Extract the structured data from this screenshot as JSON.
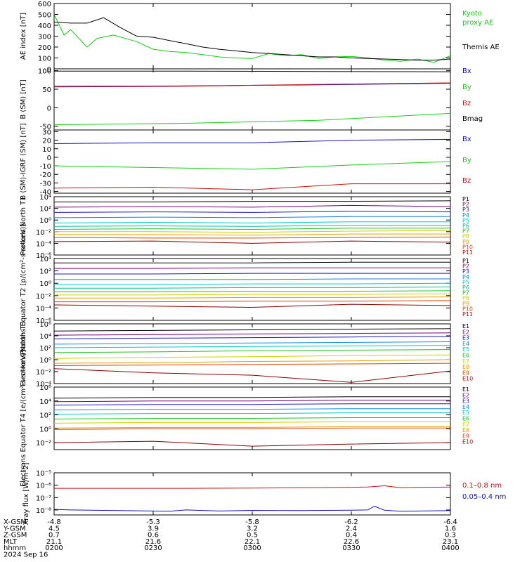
{
  "colors": {
    "black": "#000000",
    "blue": "#1010c0",
    "green": "#10d010",
    "red": "#c81010",
    "p_ladder": [
      "#000000",
      "#7a007a",
      "#1a1ac8",
      "#1a7ae8",
      "#00c8c8",
      "#00c090",
      "#20c020",
      "#d0d000",
      "#e8a000",
      "#e04000",
      "#c00000",
      "#8c0000"
    ],
    "e_ladder": [
      "#000000",
      "#7a007a",
      "#1a1ac8",
      "#1a8ae8",
      "#00c8c8",
      "#20c020",
      "#d0d000",
      "#e8a000",
      "#e04000",
      "#c00000",
      "#8c0000"
    ]
  },
  "chart_data": [
    {
      "id": "ae",
      "type": "line",
      "ylabel": "AE index [nT]",
      "yticks": [
        "600",
        "500",
        "400",
        "300",
        "200",
        "100",
        "0"
      ],
      "ylim": [
        0,
        600
      ],
      "legend_placement": "right",
      "series": [
        {
          "name": "Kyoto proxy AE",
          "color": "#10d010",
          "x": [
            0,
            3,
            5,
            10,
            13,
            18,
            25,
            30,
            35,
            40,
            45,
            50,
            55,
            60,
            65,
            70,
            75,
            80,
            85,
            90,
            95,
            100,
            105,
            110,
            115,
            120
          ],
          "values": [
            500,
            310,
            360,
            200,
            280,
            310,
            250,
            180,
            160,
            150,
            130,
            110,
            100,
            95,
            140,
            120,
            130,
            95,
            110,
            115,
            100,
            80,
            70,
            90,
            60,
            120
          ]
        },
        {
          "name": "Themis AE",
          "color": "#000000",
          "x": [
            0,
            5,
            10,
            15,
            20,
            25,
            30,
            35,
            40,
            45,
            50,
            55,
            60,
            65,
            70,
            75,
            80,
            85,
            90,
            95,
            100,
            105,
            110,
            115,
            120
          ],
          "values": [
            430,
            420,
            420,
            470,
            380,
            300,
            290,
            260,
            230,
            200,
            180,
            165,
            150,
            140,
            130,
            120,
            110,
            110,
            100,
            95,
            90,
            85,
            80,
            80,
            90
          ]
        }
      ]
    },
    {
      "id": "b",
      "type": "line",
      "ylabel": "B (SM) [nT]",
      "yticks": [
        "100",
        "50",
        "0",
        "-50"
      ],
      "ylim": [
        -60,
        105
      ],
      "legend_placement": "right",
      "series": [
        {
          "name": "Bx",
          "color": "#1010c0",
          "x": [
            0,
            40,
            80,
            120
          ],
          "values": [
            58,
            59,
            62,
            66
          ]
        },
        {
          "name": "By",
          "color": "#10d010",
          "x": [
            0,
            40,
            80,
            120
          ],
          "values": [
            -46,
            -42,
            -34,
            -15
          ]
        },
        {
          "name": "Bz",
          "color": "#c81010",
          "x": [
            0,
            40,
            80,
            120
          ],
          "values": [
            56,
            58,
            63,
            67
          ]
        },
        {
          "name": "Bmag",
          "color": "#000000",
          "x": [
            0,
            40,
            80,
            120
          ],
          "values": [
            99,
            99,
            98,
            97
          ]
        }
      ]
    },
    {
      "id": "db",
      "type": "line",
      "ylabel": "B (SM)-IGRF (SM) [nT]",
      "yticks": [
        "30",
        "20",
        "10",
        "0",
        "-10",
        "-20",
        "-30",
        "-40"
      ],
      "ylim": [
        -42,
        32
      ],
      "legend_placement": "right",
      "series": [
        {
          "name": "Bx",
          "color": "#1010c0",
          "x": [
            0,
            30,
            60,
            90,
            120
          ],
          "values": [
            16,
            17,
            17,
            20,
            21
          ]
        },
        {
          "name": "By",
          "color": "#10d010",
          "x": [
            0,
            30,
            60,
            90,
            120
          ],
          "values": [
            -10,
            -12,
            -14,
            -9,
            -5
          ]
        },
        {
          "name": "Bz",
          "color": "#c81010",
          "x": [
            0,
            30,
            60,
            90,
            120
          ],
          "values": [
            -36,
            -35,
            -38,
            -31,
            -31
          ]
        }
      ]
    },
    {
      "id": "pn",
      "type": "line",
      "yscale": "log",
      "ylabel": "Protons North T1",
      "yticks": [
        "10⁴",
        "10²",
        "10⁰",
        "10⁻²",
        "10⁻⁴",
        "10⁻⁶"
      ],
      "ylim": [
        -6,
        4
      ],
      "legend_placement": "right",
      "series": [
        {
          "name": "P1",
          "color": "#000000",
          "log_values": [
            3.1,
            3.1,
            3.2,
            3.2,
            3.3
          ]
        },
        {
          "name": "P2",
          "color": "#7a007a",
          "log_values": [
            2.2,
            2.3,
            2.2,
            2.5,
            2.3
          ]
        },
        {
          "name": "P3",
          "color": "#1a1ac8",
          "log_values": [
            1.3,
            1.4,
            1.3,
            1.5,
            1.4
          ]
        },
        {
          "name": "P4",
          "color": "#1a7ae8",
          "log_values": [
            0.4,
            0.5,
            0.4,
            0.6,
            0.6
          ]
        },
        {
          "name": "P5",
          "color": "#00c8c8",
          "log_values": [
            -0.5,
            -0.4,
            -0.5,
            -0.3,
            -0.3
          ]
        },
        {
          "name": "P6",
          "color": "#00c090",
          "log_values": [
            -1.1,
            -1.0,
            -1.1,
            -0.9,
            -0.9
          ]
        },
        {
          "name": "P7",
          "color": "#20c020",
          "log_values": [
            -1.6,
            -1.5,
            -1.6,
            -1.4,
            -1.4
          ]
        },
        {
          "name": "P8",
          "color": "#d0d000",
          "log_values": [
            -2.0,
            -2.0,
            -2.1,
            -1.9,
            -1.8
          ]
        },
        {
          "name": "P9",
          "color": "#e8a000",
          "log_values": [
            -2.5,
            -2.5,
            -2.6,
            -2.4,
            -2.4
          ]
        },
        {
          "name": "P10",
          "color": "#e04000",
          "log_values": [
            -3.0,
            -3.1,
            -3.1,
            -3.0,
            -2.9
          ]
        },
        {
          "name": "P11",
          "color": "#8c0000",
          "log_values": [
            -3.7,
            -3.6,
            -4.0,
            -3.6,
            -3.8
          ]
        }
      ]
    },
    {
      "id": "pe",
      "type": "line",
      "yscale": "log",
      "ylabel": "Protons Equator T2 [p/(cm²-s-sr-keV)]",
      "yticks": [
        "10⁴",
        "10²",
        "10⁰",
        "10⁻²",
        "10⁻⁴",
        "10⁻⁶"
      ],
      "ylim": [
        -6,
        4
      ],
      "legend_placement": "right",
      "series": [
        {
          "name": "P1",
          "color": "#000000",
          "log_values": [
            3.3,
            3.3,
            3.3,
            3.4,
            3.4
          ]
        },
        {
          "name": "P2",
          "color": "#7a007a",
          "log_values": [
            2.4,
            2.4,
            2.5,
            2.5,
            2.5
          ]
        },
        {
          "name": "P3",
          "color": "#1a1ac8",
          "log_values": [
            1.5,
            1.5,
            1.6,
            1.6,
            1.6
          ]
        },
        {
          "name": "P4",
          "color": "#1a7ae8",
          "log_values": [
            0.6,
            0.6,
            0.6,
            0.7,
            0.7
          ]
        },
        {
          "name": "P5",
          "color": "#00c8c8",
          "log_values": [
            -0.2,
            -0.2,
            -0.1,
            -0.1,
            0.0
          ]
        },
        {
          "name": "P6",
          "color": "#00c090",
          "log_values": [
            -0.8,
            -0.8,
            -0.7,
            -0.7,
            -0.6
          ]
        },
        {
          "name": "P7",
          "color": "#20c020",
          "log_values": [
            -1.4,
            -1.4,
            -1.3,
            -1.3,
            -1.2
          ]
        },
        {
          "name": "P8",
          "color": "#d0d000",
          "log_values": [
            -1.9,
            -1.9,
            -1.8,
            -1.8,
            -1.7
          ]
        },
        {
          "name": "P9",
          "color": "#e8a000",
          "log_values": [
            -2.4,
            -2.4,
            -2.3,
            -2.3,
            -2.2
          ]
        },
        {
          "name": "P10",
          "color": "#e04000",
          "log_values": [
            -3.0,
            -3.0,
            -2.9,
            -2.9,
            -2.8
          ]
        },
        {
          "name": "P11",
          "color": "#8c0000",
          "log_values": [
            -3.5,
            -3.7,
            -3.9,
            -3.4,
            -3.6
          ]
        }
      ]
    },
    {
      "id": "en",
      "type": "line",
      "yscale": "log",
      "ylabel": "Electrons North T3",
      "yticks": [
        "10⁶",
        "10⁴",
        "10²",
        "10⁰",
        "10⁻²",
        "10⁻⁴"
      ],
      "ylim": [
        -4,
        6
      ],
      "legend_placement": "right",
      "series": [
        {
          "name": "E1",
          "color": "#000000",
          "log_values": [
            4.8,
            4.9,
            5.0,
            5.1,
            5.2
          ]
        },
        {
          "name": "E2",
          "color": "#7a007a",
          "log_values": [
            4.1,
            4.2,
            4.3,
            4.4,
            4.5
          ]
        },
        {
          "name": "E3",
          "color": "#1a1ac8",
          "log_values": [
            3.5,
            3.6,
            3.7,
            3.8,
            3.9
          ]
        },
        {
          "name": "E4",
          "color": "#1a8ae8",
          "log_values": [
            2.6,
            2.7,
            2.8,
            2.9,
            3.0
          ]
        },
        {
          "name": "E5",
          "color": "#00c8c8",
          "log_values": [
            2.0,
            2.1,
            2.2,
            2.3,
            2.4
          ]
        },
        {
          "name": "E6",
          "color": "#20c020",
          "log_values": [
            1.2,
            1.3,
            1.5,
            1.6,
            1.7
          ]
        },
        {
          "name": "E7",
          "color": "#d0d000",
          "log_values": [
            0.2,
            0.4,
            0.5,
            0.7,
            0.8
          ]
        },
        {
          "name": "E8",
          "color": "#e8a000",
          "log_values": [
            -0.6,
            -0.5,
            -0.3,
            -0.2,
            0.0
          ]
        },
        {
          "name": "E9",
          "color": "#e04000",
          "log_values": [
            -1.0,
            -0.9,
            -0.8,
            -0.7,
            -0.6
          ]
        },
        {
          "name": "E10",
          "color": "#8c0000",
          "log_values": [
            -1.5,
            -2.2,
            -2.6,
            -3.8,
            -1.9
          ]
        }
      ]
    },
    {
      "id": "ee",
      "type": "line",
      "yscale": "log",
      "ylabel": "Electrons Equator T4 [e/(cm²-s-sr-keV)]",
      "yticks": [
        "10⁶",
        "10⁴",
        "10²",
        "10⁰",
        "10⁻²"
      ],
      "ylim": [
        -3,
        6
      ],
      "legend_placement": "right",
      "series": [
        {
          "name": "E1",
          "color": "#000000",
          "log_values": [
            4.4,
            4.5,
            4.5,
            4.6,
            4.6
          ]
        },
        {
          "name": "E2",
          "color": "#7a007a",
          "log_values": [
            3.9,
            4.0,
            4.0,
            4.1,
            4.1
          ]
        },
        {
          "name": "E3",
          "color": "#1a1ac8",
          "log_values": [
            3.4,
            3.5,
            3.5,
            3.6,
            3.6
          ]
        },
        {
          "name": "E4",
          "color": "#1a8ae8",
          "log_values": [
            2.7,
            2.8,
            2.8,
            2.9,
            2.9
          ]
        },
        {
          "name": "E5",
          "color": "#00c8c8",
          "log_values": [
            2.1,
            2.2,
            2.2,
            2.3,
            2.3
          ]
        },
        {
          "name": "E6",
          "color": "#20c020",
          "log_values": [
            1.4,
            1.5,
            1.5,
            1.6,
            1.6
          ]
        },
        {
          "name": "E7",
          "color": "#d0d000",
          "log_values": [
            0.8,
            0.9,
            0.9,
            1.0,
            1.0
          ]
        },
        {
          "name": "E8",
          "color": "#e8a000",
          "log_values": [
            0.1,
            0.2,
            0.2,
            0.3,
            0.3
          ]
        },
        {
          "name": "E9",
          "color": "#e04000",
          "log_values": [
            -0.1,
            0.0,
            0.0,
            0.1,
            0.1
          ]
        },
        {
          "name": "E10",
          "color": "#8c0000",
          "log_values": [
            -2.0,
            -1.8,
            -2.5,
            -2.2,
            -2.0
          ]
        }
      ]
    },
    {
      "id": "xr",
      "type": "line",
      "yscale": "log",
      "ylabel": "Xray flux [W/m²2]",
      "yticks": [
        "10⁻⁵",
        "10⁻⁶",
        "10⁻⁷",
        "10⁻⁸"
      ],
      "ylim": [
        -8.4,
        -5
      ],
      "legend_placement": "right",
      "series": [
        {
          "name": "0.1–0.8 nm",
          "color": "#c81010",
          "x": [
            0,
            20,
            40,
            60,
            80,
            95,
            100,
            105,
            110,
            120
          ],
          "log_values": [
            -6.25,
            -6.25,
            -6.25,
            -6.23,
            -6.2,
            -6.15,
            -6.05,
            -6.2,
            -6.18,
            -6.15
          ]
        },
        {
          "name": "0.05–0.4 nm",
          "color": "#1010c0",
          "x": [
            0,
            5,
            20,
            35,
            40,
            50,
            60,
            75,
            90,
            95,
            97,
            100,
            105,
            120
          ],
          "log_values": [
            -7.95,
            -8.0,
            -8.05,
            -8.1,
            -8.0,
            -8.08,
            -8.03,
            -8.05,
            -8.02,
            -8.0,
            -7.7,
            -8.02,
            -8.1,
            -8.05
          ]
        }
      ]
    }
  ],
  "time_axis": {
    "ticks": [
      {
        "hhmm": "0200",
        "xgsm": "-4.8",
        "ygsm": "4.5",
        "zgsm": "0.7",
        "mlt": "21.1"
      },
      {
        "hhmm": "0230",
        "xgsm": "-5.3",
        "ygsm": "3.9",
        "zgsm": "0.6",
        "mlt": "21.6"
      },
      {
        "hhmm": "0300",
        "xgsm": "-5.8",
        "ygsm": "3.2",
        "zgsm": "0.5",
        "mlt": "22.1"
      },
      {
        "hhmm": "0330",
        "xgsm": "-6.2",
        "ygsm": "2.4",
        "zgsm": "0.4",
        "mlt": "22.6"
      },
      {
        "hhmm": "0400",
        "xgsm": "-6.4",
        "ygsm": "1.6",
        "zgsm": "0.3",
        "mlt": "23.1"
      }
    ],
    "row_labels": {
      "xgsm": "X-GSM",
      "ygsm": "Y-GSM",
      "zgsm": "Z-GSM",
      "mlt": "MLT",
      "hhmm": "hhmm"
    },
    "date": "2024 Sep 16"
  },
  "legends": {
    "ae": [
      "Kyoto",
      "proxy AE",
      "Themis AE"
    ],
    "b": [
      "Bx",
      "By",
      "Bz",
      "Bmag"
    ],
    "db": [
      "Bx",
      "By",
      "Bz"
    ],
    "pn": [
      "P1",
      "P2",
      "P3",
      "P4",
      "P5",
      "P6",
      "P7",
      "P8",
      "P9",
      "P10",
      "P11"
    ],
    "pe": [
      "P1",
      "P2",
      "P3",
      "P4",
      "P5",
      "P6",
      "P7",
      "P8",
      "P9",
      "P10",
      "P11"
    ],
    "en": [
      "E1",
      "E2",
      "E3",
      "E4",
      "E5",
      "E6",
      "E7",
      "E8",
      "E9",
      "E10"
    ],
    "ee": [
      "E1",
      "E2",
      "E3",
      "E4",
      "E5",
      "E6",
      "E7",
      "E8",
      "E9",
      "E10"
    ],
    "xr": [
      "0.1–0.8 nm",
      "0.05–0.4 nm"
    ]
  }
}
